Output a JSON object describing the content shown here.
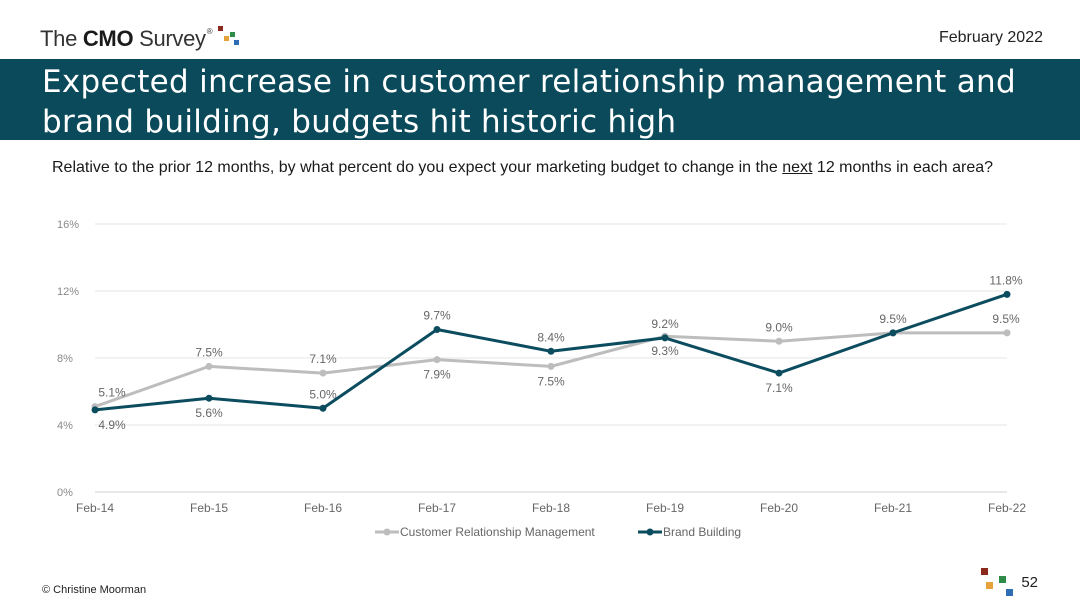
{
  "header": {
    "logo": {
      "prefix": "The ",
      "bold": "CMO",
      "suffix": " Survey",
      "tm": "®"
    },
    "date": "February 2022"
  },
  "title": "Expected increase in customer relationship management and brand building, budgets hit historic high",
  "question": {
    "before": "Relative to the prior 12 months, by what percent do you expect your marketing budget to change in the ",
    "underlined": "next",
    "after": " 12 months in each area?"
  },
  "footer": {
    "copyright": "© Christine Moorman",
    "page": "52"
  },
  "colors": {
    "banner": "#0a4a5a",
    "crm": "#bdbdbd",
    "brand": "#0b4c5f",
    "logo_squares": [
      "#8b2a1c",
      "#2e8b4a",
      "#e8a23c",
      "#2e6db4"
    ]
  },
  "chart_data": {
    "type": "line",
    "categories": [
      "Feb-14",
      "Feb-15",
      "Feb-16",
      "Feb-17",
      "Feb-18",
      "Feb-19",
      "Feb-20",
      "Feb-21",
      "Feb-22"
    ],
    "ylim": [
      0,
      16
    ],
    "yticks": [
      0,
      4,
      8,
      12,
      16
    ],
    "ytick_labels": [
      "0%",
      "4%",
      "8%",
      "12%",
      "16%"
    ],
    "grid": true,
    "legend_position": "bottom",
    "series": [
      {
        "name": "Customer Relationship Management",
        "values": [
          5.1,
          7.5,
          7.1,
          7.9,
          7.5,
          9.3,
          9.0,
          9.5,
          9.5
        ],
        "labels": [
          "5.1%",
          "7.5%",
          "7.1%",
          "7.9%",
          "7.5%",
          "9.3%",
          "9.0%",
          "9.5%",
          "9.5%"
        ],
        "label_pos": [
          "above",
          "above",
          "above",
          "below",
          "below",
          "below",
          "above",
          "above",
          "above"
        ]
      },
      {
        "name": "Brand Building",
        "values": [
          4.9,
          5.6,
          5.0,
          9.7,
          8.4,
          9.2,
          7.1,
          9.5,
          11.8
        ],
        "labels": [
          "4.9%",
          "5.6%",
          "5.0%",
          "9.7%",
          "8.4%",
          "9.2%",
          "7.1%",
          "",
          "11.8%"
        ],
        "label_pos": [
          "below",
          "below",
          "above",
          "above",
          "above",
          "above",
          "below",
          "above",
          "above"
        ]
      }
    ]
  }
}
